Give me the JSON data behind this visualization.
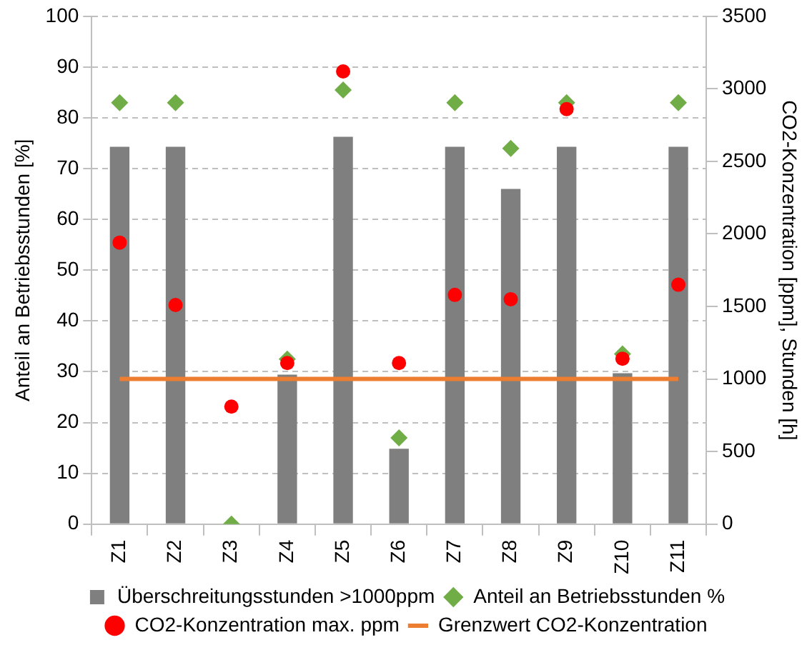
{
  "chart_data": {
    "type": "bar",
    "ylabel": "Anteil an Betriebsstunden [%]",
    "y2label": "CO2-Konzentration [ppm], Stunden [h]",
    "categories": [
      "Z1",
      "Z2",
      "Z3",
      "Z4",
      "Z5",
      "Z6",
      "Z7",
      "Z8",
      "Z9",
      "Z10",
      "Z11"
    ],
    "series": [
      {
        "name": "Überschreitungsstunden >1000ppm",
        "axis": "y2",
        "color": "#7f7f7f",
        "values": [
          2600,
          2600,
          0,
          1030,
          2670,
          520,
          2600,
          2310,
          2600,
          1040,
          2600
        ]
      },
      {
        "name": "Anteil an Betriebsstunden %",
        "type": "scatter",
        "marker": "diamond",
        "color": "#70ad47",
        "values": [
          83,
          83,
          0,
          32.5,
          85.5,
          17,
          83,
          74,
          83,
          33.5,
          83
        ]
      },
      {
        "name": "CO2-Konzentration max. ppm",
        "type": "scatter",
        "marker": "circle",
        "axis": "y2",
        "color": "#ff0000",
        "values": [
          1940,
          1510,
          810,
          1110,
          3120,
          1110,
          1580,
          1550,
          2860,
          1140,
          1650
        ]
      },
      {
        "name": "Grenzwert CO2-Konzentration",
        "type": "line",
        "marker": "none",
        "axis": "y2",
        "color": "#ed7d31",
        "values": [
          1000,
          1000,
          1000,
          1000,
          1000,
          1000,
          1000,
          1000,
          1000,
          1000,
          1000
        ]
      }
    ],
    "ylim": [
      0,
      100
    ],
    "yticks": [
      0,
      10,
      20,
      30,
      40,
      50,
      60,
      70,
      80,
      90,
      100
    ],
    "y2lim": [
      0,
      3500
    ],
    "y2ticks": [
      0,
      500,
      1000,
      1500,
      2000,
      2500,
      3000,
      3500
    ],
    "grid": "y",
    "legend": "bottom"
  }
}
